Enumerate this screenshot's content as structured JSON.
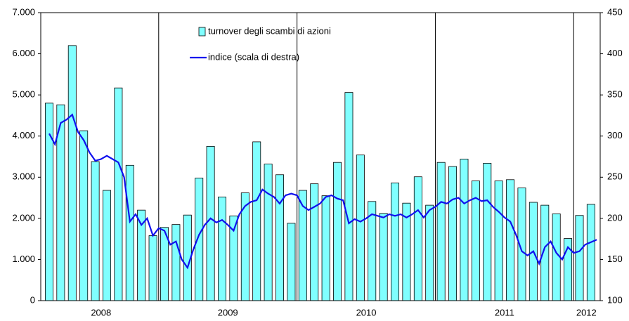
{
  "chart_data": {
    "type": "bar-line",
    "xlim": [
      -0.73,
      47.8
    ],
    "xticks": [
      {
        "value": 4.5,
        "label": "2008"
      },
      {
        "value": 15.5,
        "label": "2009"
      },
      {
        "value": 27.5,
        "label": "2010"
      },
      {
        "value": 39.5,
        "label": "2011"
      },
      {
        "value": 46.6,
        "label": "2012"
      }
    ],
    "xgrid": [
      9.5,
      21.5,
      33.5,
      45.5
    ],
    "ylim": [
      0,
      7000
    ],
    "yticks": [
      {
        "value": 0,
        "label": "0"
      },
      {
        "value": 1000,
        "label": "1.000"
      },
      {
        "value": 2000,
        "label": "2.000"
      },
      {
        "value": 3000,
        "label": "3.000"
      },
      {
        "value": 4000,
        "label": "4.000"
      },
      {
        "value": 5000,
        "label": "5.000"
      },
      {
        "value": 6000,
        "label": "6.000"
      },
      {
        "value": 7000,
        "label": "7.000"
      }
    ],
    "y2lim": [
      100,
      450
    ],
    "y2ticks": [
      100,
      150,
      200,
      250,
      300,
      350,
      400,
      450
    ],
    "legend": "top-center",
    "series": [
      {
        "name": "turnover degli scambi di azioni",
        "type": "bar",
        "color": "#80ffff",
        "values": [
          4800,
          4760,
          6200,
          4130,
          3380,
          2680,
          5170,
          3290,
          2200,
          1580,
          1780,
          1850,
          2080,
          2980,
          3750,
          2520,
          2060,
          2620,
          3860,
          3320,
          3060,
          1880,
          2680,
          2840,
          2550,
          3360,
          5060,
          3540,
          2410,
          2120,
          2860,
          2370,
          3010,
          2320,
          3360,
          3260,
          3440,
          2910,
          3340,
          2910,
          2940,
          2740,
          2390,
          2320,
          2110,
          1510,
          2070,
          2340
        ]
      },
      {
        "name": "indice (scala di destra)",
        "type": "line",
        "axis": "y2",
        "color": "#1010ee",
        "x": [
          0,
          0.5,
          1,
          1.5,
          2,
          2.5,
          3,
          3.5,
          4,
          4.5,
          5,
          5.5,
          6,
          6.5,
          7,
          7.5,
          8,
          8.5,
          9,
          9.5,
          10,
          10.5,
          11,
          11.5,
          12,
          12.5,
          13,
          13.5,
          14,
          14.5,
          15,
          15.5,
          16,
          16.5,
          17,
          17.5,
          18,
          18.5,
          19,
          19.5,
          20,
          20.5,
          21,
          21.5,
          22,
          22.5,
          23,
          23.5,
          24,
          24.5,
          25,
          25.5,
          26,
          26.5,
          27,
          27.5,
          28,
          28.5,
          29,
          29.5,
          30,
          30.5,
          31,
          31.5,
          32,
          32.5,
          33,
          33.5,
          34,
          34.5,
          35,
          35.5,
          36,
          36.5,
          37,
          37.5,
          38,
          38.5,
          39,
          39.5,
          40,
          40.5,
          41,
          41.5,
          42,
          42.5,
          43,
          43.5,
          44,
          44.5,
          45,
          45.5,
          46,
          46.5,
          47,
          47.5
        ],
        "values": [
          303,
          290,
          316,
          320,
          326,
          305,
          295,
          280,
          270,
          272,
          276,
          272,
          268,
          250,
          196,
          205,
          192,
          200,
          179,
          188,
          185,
          168,
          172,
          150,
          140,
          162,
          180,
          192,
          200,
          195,
          198,
          192,
          185,
          205,
          215,
          220,
          222,
          235,
          230,
          226,
          218,
          228,
          230,
          228,
          215,
          210,
          214,
          218,
          226,
          228,
          224,
          222,
          194,
          199,
          196,
          200,
          205,
          203,
          201,
          205,
          203,
          205,
          201,
          205,
          210,
          201,
          210,
          214,
          220,
          218,
          223,
          225,
          218,
          222,
          225,
          221,
          222,
          214,
          208,
          201,
          196,
          180,
          160,
          155,
          160,
          145,
          165,
          172,
          158,
          150,
          165,
          158,
          160,
          168,
          171,
          174
        ]
      }
    ]
  }
}
